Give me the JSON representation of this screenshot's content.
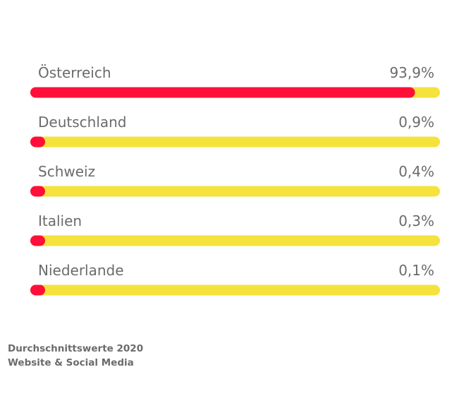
{
  "chart_data": {
    "type": "bar",
    "orientation": "horizontal",
    "categories": [
      "Österreich",
      "Deutschland",
      "Schweiz",
      "Italien",
      "Niederlande"
    ],
    "values": [
      93.9,
      0.9,
      0.4,
      0.3,
      0.1
    ],
    "value_labels": [
      "93,9%",
      "0,9%",
      "0,4%",
      "0,3%",
      "0,1%"
    ],
    "unit": "%",
    "xlim": [
      0,
      100
    ],
    "grid": false,
    "legend": "none",
    "colors": {
      "fill": "#ff0f3a",
      "track": "#f5e23c",
      "text": "#6b6b6b"
    }
  },
  "footnote": {
    "line1": "Durchschnittswerte 2020",
    "line2": "Website & Social Media"
  }
}
